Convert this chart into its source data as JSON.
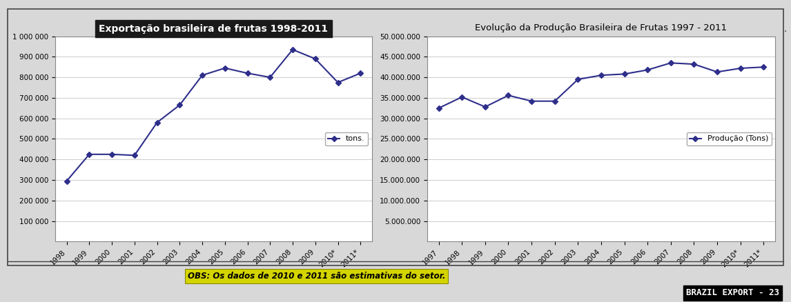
{
  "chart1": {
    "title": "Exportação brasileira de frutas 1998-2011",
    "title_bg": "#1a1a1a",
    "title_color": "#ffffff",
    "years": [
      "1998",
      "1999",
      "2000",
      "2001",
      "2002",
      "2003",
      "2004",
      "2005",
      "2006",
      "2007",
      "2008",
      "2009",
      "2010*",
      "2011*"
    ],
    "values": [
      295000,
      425000,
      425000,
      420000,
      580000,
      665000,
      810000,
      845000,
      820000,
      800000,
      935000,
      890000,
      775000,
      820000
    ],
    "legend_label": "tons.",
    "ylim": [
      0,
      1000000
    ],
    "yticks": [
      100000,
      200000,
      300000,
      400000,
      500000,
      600000,
      700000,
      800000,
      900000,
      1000000
    ],
    "line_color": "#2e2e8b",
    "marker": "D",
    "marker_size": 4
  },
  "chart2": {
    "title": "Evolução da Produção Brasileira de Frutas 1997 - 2011",
    "years": [
      "1997",
      "1998",
      "1999",
      "2000",
      "2001",
      "2002",
      "2003",
      "2004",
      "2005",
      "2006",
      "2007",
      "2008",
      "2009",
      "2010*",
      "2011*"
    ],
    "values": [
      32500000,
      35200000,
      32800000,
      35600000,
      34200000,
      34200000,
      39500000,
      40500000,
      40800000,
      41800000,
      43500000,
      43200000,
      41300000,
      42200000,
      42500000
    ],
    "legend_label": "Produção (Tons)",
    "ylim": [
      0,
      50000000
    ],
    "yticks": [
      5000000,
      10000000,
      15000000,
      20000000,
      25000000,
      30000000,
      35000000,
      40000000,
      45000000,
      50000000
    ],
    "line_color": "#2e2e8b",
    "marker": "D",
    "marker_size": 4
  },
  "obs_text": "OBS: Os dados de 2010 e 2011 são estimativas do setor.",
  "obs_bg": "#d4d400",
  "obs_text_color": "#000000",
  "footer_text": "BRAZIL EXPORT - 23",
  "footer_bg": "#000000",
  "footer_text_color": "#ffffff",
  "bg_color": "#d8d8d8",
  "chart_bg": "#ffffff",
  "border_color": "#888888",
  "outer_border_color": "#444444"
}
